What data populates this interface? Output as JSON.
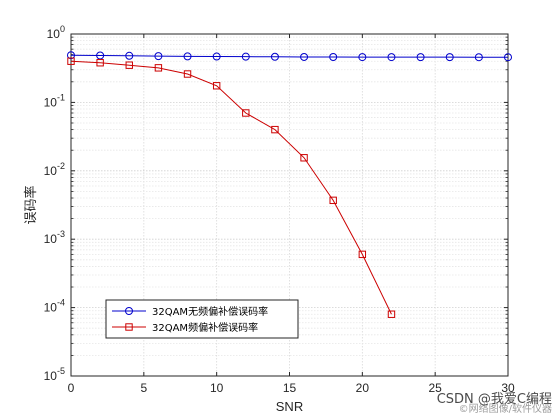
{
  "chart_data": {
    "type": "line",
    "yscale": "log",
    "xlabel": "SNR",
    "ylabel": "误码率",
    "xlim": [
      0,
      30
    ],
    "ylim": [
      1e-05,
      1
    ],
    "grid": true,
    "legend_position": "bottom-left",
    "x_ticks": [
      "0",
      "5",
      "10",
      "15",
      "20",
      "25",
      "30"
    ],
    "y_ticks": [
      {
        "base": "10",
        "exp": "0"
      },
      {
        "base": "10",
        "exp": "-1"
      },
      {
        "base": "10",
        "exp": "-2"
      },
      {
        "base": "10",
        "exp": "-3"
      },
      {
        "base": "10",
        "exp": "-4"
      },
      {
        "base": "10",
        "exp": "-5"
      }
    ],
    "series": [
      {
        "name": "32QAM无频偏补偿误码率",
        "color": "#0000cc",
        "marker": "circle",
        "x": [
          0,
          2,
          4,
          6,
          8,
          10,
          12,
          14,
          16,
          18,
          20,
          22,
          24,
          26,
          28,
          30
        ],
        "y": [
          0.49,
          0.485,
          0.48,
          0.475,
          0.47,
          0.468,
          0.466,
          0.464,
          0.462,
          0.461,
          0.46,
          0.46,
          0.459,
          0.459,
          0.458,
          0.458
        ]
      },
      {
        "name": "32QAM频偏补偿误码率",
        "color": "#cc0000",
        "marker": "square",
        "x": [
          0,
          2,
          4,
          6,
          8,
          10,
          12,
          14,
          16,
          18,
          20,
          22
        ],
        "y": [
          0.4,
          0.38,
          0.35,
          0.32,
          0.26,
          0.175,
          0.07,
          0.04,
          0.0155,
          0.0037,
          0.0006,
          8e-05
        ]
      }
    ]
  },
  "watermark": {
    "main": "CSDN @我爱C编程",
    "sub": "©网络图像/软件仪器"
  }
}
